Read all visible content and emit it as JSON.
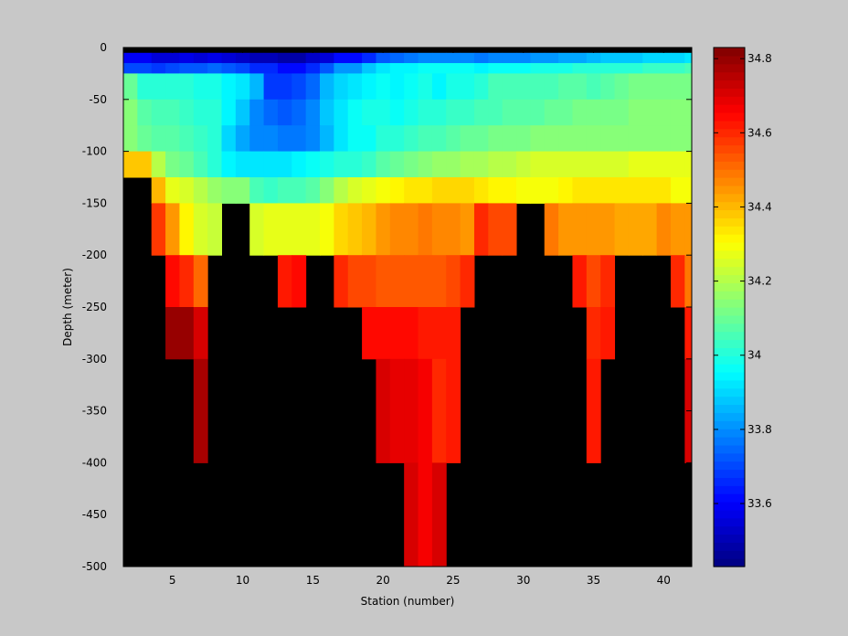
{
  "chart_data": {
    "type": "heatmap",
    "title": "",
    "xlabel": "Station (number)",
    "ylabel": "Depth (meter)",
    "xlim": [
      1.5,
      42
    ],
    "ylim": [
      -500,
      0
    ],
    "x_ticks": [
      5,
      10,
      15,
      20,
      25,
      30,
      35,
      40
    ],
    "y_ticks": [
      0,
      -50,
      -100,
      -150,
      -200,
      -250,
      -300,
      -350,
      -400,
      -450,
      -500
    ],
    "colorbar": {
      "range": [
        33.43,
        34.83
      ],
      "ticks": [
        33.6,
        33.8,
        34,
        34.2,
        34.4,
        34.6,
        34.8
      ],
      "colormap": "jet"
    },
    "missing_color": "#000000",
    "top_band_color": "#000000",
    "background": "#c8c8c8",
    "stations": [
      2,
      3,
      4,
      5,
      6,
      7,
      8,
      9,
      10,
      11,
      12,
      13,
      14,
      15,
      16,
      17,
      18,
      19,
      20,
      21,
      22,
      23,
      24,
      25,
      26,
      27,
      28,
      29,
      30,
      31,
      32,
      33,
      34,
      35,
      36,
      37,
      38,
      39,
      40,
      41,
      42
    ],
    "depth_rows": [
      {
        "from": -5,
        "to": -15,
        "values": [
          33.6,
          33.6,
          33.55,
          33.56,
          33.57,
          33.55,
          33.58,
          33.55,
          33.53,
          33.5,
          33.5,
          33.48,
          33.48,
          33.52,
          33.55,
          33.62,
          33.62,
          33.65,
          33.72,
          33.74,
          33.76,
          33.78,
          33.79,
          33.8,
          33.78,
          33.76,
          33.78,
          33.8,
          33.8,
          33.81,
          33.82,
          33.84,
          33.84,
          33.86,
          33.87,
          33.87,
          33.88,
          33.89,
          33.9,
          33.9,
          33.92
        ]
      },
      {
        "from": -15,
        "to": -25,
        "values": [
          33.7,
          33.7,
          33.68,
          33.7,
          33.72,
          33.72,
          33.75,
          33.72,
          33.7,
          33.65,
          33.65,
          33.62,
          33.62,
          33.66,
          33.72,
          33.82,
          33.82,
          33.88,
          33.92,
          33.94,
          33.95,
          33.96,
          33.97,
          33.97,
          33.96,
          33.95,
          33.96,
          33.97,
          33.97,
          33.98,
          33.98,
          33.99,
          34.0,
          34.0,
          34.01,
          34.02,
          34.02,
          34.03,
          34.04,
          34.04,
          34.05
        ]
      },
      {
        "from": -25,
        "to": -50,
        "values": [
          34.1,
          34.02,
          34.0,
          34.0,
          34.0,
          33.98,
          33.98,
          33.95,
          33.92,
          33.85,
          33.68,
          33.68,
          33.7,
          33.75,
          33.85,
          33.9,
          33.92,
          33.94,
          33.96,
          33.95,
          33.96,
          33.98,
          33.95,
          33.98,
          33.98,
          34.02,
          34.05,
          34.06,
          34.06,
          34.06,
          34.06,
          34.08,
          34.08,
          34.06,
          34.08,
          34.1,
          34.12,
          34.12,
          34.12,
          34.12,
          34.12
        ]
      },
      {
        "from": -50,
        "to": -75,
        "values": [
          34.14,
          34.08,
          34.06,
          34.05,
          34.04,
          34.02,
          34.0,
          33.95,
          33.88,
          33.8,
          33.75,
          33.72,
          33.74,
          33.8,
          33.88,
          33.93,
          33.97,
          33.98,
          33.98,
          33.96,
          33.98,
          34.0,
          34.02,
          34.04,
          34.04,
          34.05,
          34.06,
          34.07,
          34.08,
          34.08,
          34.09,
          34.1,
          34.11,
          34.12,
          34.12,
          34.12,
          34.13,
          34.13,
          34.15,
          34.14,
          34.15
        ]
      },
      {
        "from": -75,
        "to": -100,
        "values": [
          34.14,
          34.1,
          34.08,
          34.07,
          34.06,
          34.04,
          34.0,
          33.9,
          33.83,
          33.78,
          33.78,
          33.76,
          33.76,
          33.8,
          33.86,
          33.92,
          33.96,
          33.97,
          34.0,
          34.02,
          34.04,
          34.06,
          34.06,
          34.08,
          34.09,
          34.1,
          34.11,
          34.12,
          34.12,
          34.13,
          34.13,
          34.14,
          34.14,
          34.14,
          34.15,
          34.15,
          34.15,
          34.15,
          34.15,
          34.14,
          34.14
        ]
      },
      {
        "from": -100,
        "to": -125,
        "values": [
          34.38,
          34.38,
          34.2,
          34.12,
          34.1,
          34.06,
          34.02,
          33.95,
          33.93,
          33.93,
          33.92,
          33.93,
          33.94,
          33.96,
          33.98,
          34.0,
          34.02,
          34.04,
          34.08,
          34.1,
          34.12,
          34.14,
          34.16,
          34.17,
          34.18,
          34.18,
          34.2,
          34.21,
          34.22,
          34.24,
          34.24,
          34.25,
          34.25,
          34.26,
          34.26,
          34.26,
          34.27,
          34.27,
          34.28,
          34.28,
          34.28
        ]
      },
      {
        "from": -125,
        "to": -150,
        "values": [
          null,
          null,
          34.4,
          34.28,
          34.24,
          34.2,
          34.17,
          34.15,
          34.14,
          34.06,
          34.04,
          34.05,
          34.06,
          34.08,
          34.15,
          34.2,
          34.24,
          34.28,
          34.3,
          34.32,
          34.34,
          34.34,
          34.36,
          34.36,
          34.36,
          34.34,
          34.32,
          34.32,
          34.3,
          34.3,
          34.3,
          34.32,
          34.34,
          34.34,
          34.34,
          34.34,
          34.34,
          34.34,
          34.34,
          34.3,
          34.3
        ]
      },
      {
        "from": -150,
        "to": -200,
        "values": [
          null,
          null,
          34.58,
          34.45,
          34.32,
          34.26,
          34.22,
          null,
          null,
          34.25,
          34.28,
          34.28,
          34.28,
          34.28,
          34.3,
          34.36,
          34.38,
          34.4,
          34.44,
          34.46,
          34.48,
          34.5,
          34.48,
          34.46,
          34.44,
          34.6,
          34.55,
          34.55,
          null,
          null,
          34.5,
          34.44,
          34.45,
          34.44,
          34.44,
          34.42,
          34.42,
          34.42,
          34.48,
          34.45,
          34.45
        ]
      },
      {
        "from": -200,
        "to": -250,
        "values": [
          null,
          null,
          null,
          34.65,
          34.6,
          34.52,
          null,
          null,
          null,
          null,
          null,
          34.62,
          34.65,
          null,
          null,
          34.6,
          34.55,
          34.55,
          34.54,
          34.54,
          34.54,
          34.54,
          34.54,
          34.56,
          34.6,
          null,
          null,
          null,
          null,
          null,
          null,
          null,
          34.62,
          34.56,
          34.6,
          null,
          null,
          null,
          null,
          34.6,
          34.5
        ]
      },
      {
        "from": -250,
        "to": -300,
        "values": [
          null,
          null,
          null,
          34.8,
          34.8,
          34.7,
          null,
          null,
          null,
          null,
          null,
          null,
          null,
          null,
          null,
          null,
          null,
          34.65,
          34.65,
          34.65,
          34.65,
          34.62,
          34.62,
          34.62,
          null,
          null,
          null,
          null,
          null,
          null,
          null,
          null,
          null,
          34.6,
          34.62,
          null,
          null,
          null,
          null,
          null,
          34.62
        ]
      },
      {
        "from": -300,
        "to": -400,
        "values": [
          null,
          null,
          null,
          null,
          null,
          34.78,
          null,
          null,
          null,
          null,
          null,
          null,
          null,
          null,
          null,
          null,
          null,
          null,
          34.7,
          34.68,
          34.68,
          34.66,
          34.6,
          34.62,
          null,
          null,
          null,
          null,
          null,
          null,
          null,
          null,
          null,
          34.62,
          null,
          null,
          null,
          null,
          null,
          null,
          34.7
        ]
      },
      {
        "from": -400,
        "to": -500,
        "values": [
          null,
          null,
          null,
          null,
          null,
          null,
          null,
          null,
          null,
          null,
          null,
          null,
          null,
          null,
          null,
          null,
          null,
          null,
          null,
          null,
          34.72,
          34.66,
          34.72,
          null,
          null,
          null,
          null,
          null,
          null,
          null,
          null,
          null,
          null,
          null,
          null,
          null,
          null,
          null,
          null,
          null,
          null
        ]
      }
    ]
  }
}
